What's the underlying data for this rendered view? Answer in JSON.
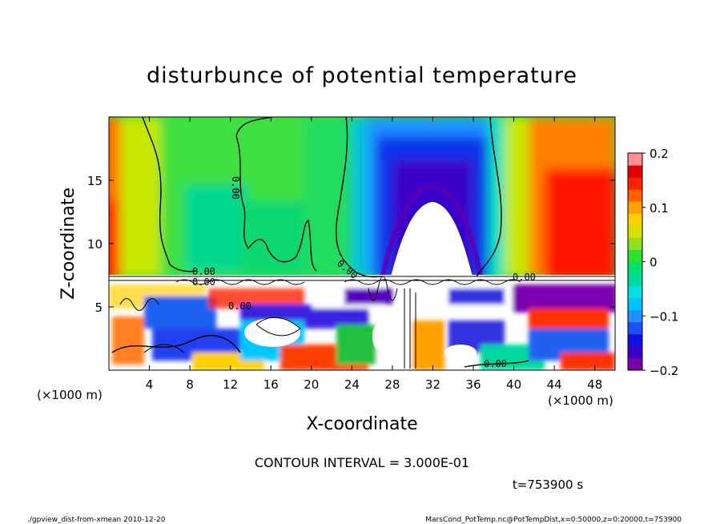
{
  "chart_data": {
    "type": "heatmap",
    "title": "disturbunce of potential temperature",
    "xlabel": "X-coordinate",
    "ylabel": "Z-coordinate",
    "x_unit_left": "(×1000 m)",
    "x_unit_right": "(×1000 m)",
    "x_ticks": [
      4,
      8,
      12,
      16,
      20,
      24,
      28,
      32,
      36,
      40,
      44,
      48
    ],
    "y_ticks": [
      5,
      10,
      15
    ],
    "xlim": [
      0,
      50
    ],
    "ylim": [
      0,
      20
    ],
    "colorbar": {
      "range": [
        -0.2,
        0.2
      ],
      "tick_labels": [
        "0.2",
        "0.1",
        "0",
        "−0.1",
        "−0.2"
      ],
      "tick_values": [
        0.2,
        0.1,
        0,
        -0.1,
        -0.2
      ],
      "colors": [
        "#7a00a8",
        "#3a00c8",
        "#1010e0",
        "#2050f0",
        "#1e90ff",
        "#00c0ff",
        "#00e0e0",
        "#00d8a0",
        "#00e070",
        "#30e030",
        "#90e020",
        "#d8e000",
        "#ffd000",
        "#ffa000",
        "#ff6000",
        "#ff2000",
        "#e00000",
        "#ff9090"
      ]
    },
    "contour_labels": [
      "0.00",
      "0.00",
      "0.00",
      "0.00",
      "0.00",
      "0.00",
      "0.00"
    ],
    "contour_interval_text": "CONTOUR INTERVAL = 3.000E-01",
    "time_text": "t=753900 s",
    "footer_left": "./gpview_dist-from-xmean   2010-12-20",
    "footer_right": "MarsCond_PotTemp.nc@PotTempDist,x=0:50000,z=0:20000,t=753900"
  }
}
